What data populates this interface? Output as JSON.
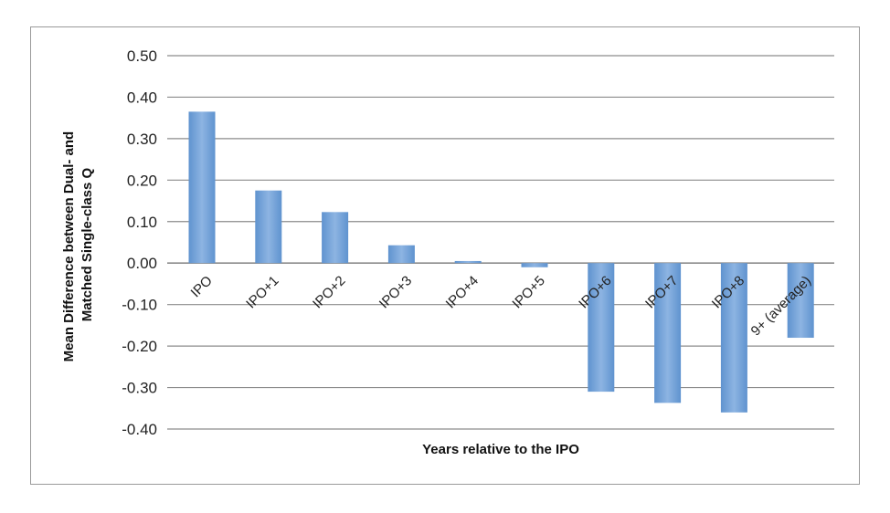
{
  "chart_data": {
    "type": "bar",
    "title": "",
    "xlabel": "Years relative to the IPO",
    "ylabel": "Mean Difference between Dual- and Matched Single-class Q",
    "categories": [
      "IPO",
      "IPO+1",
      "IPO+2",
      "IPO+3",
      "IPO+4",
      "IPO+5",
      "IPO+6",
      "IPO+7",
      "IPO+8",
      "9+ (average)"
    ],
    "series": [
      {
        "values": [
          0.365,
          0.175,
          0.123,
          0.043,
          0.005,
          -0.01,
          -0.31,
          -0.337,
          -0.36,
          -0.18
        ]
      }
    ],
    "ylim": [
      -0.4,
      0.5
    ],
    "yticks": [
      0.5,
      0.4,
      0.3,
      0.2,
      0.1,
      0.0,
      -0.1,
      -0.2,
      -0.3,
      -0.4
    ],
    "ytick_labels": [
      "0.50",
      "0.40",
      "0.30",
      "0.20",
      "0.10",
      "0.00",
      "-0.10",
      "-0.20",
      "-0.30",
      "-0.40"
    ],
    "grid": true,
    "legend": "none",
    "colors": {
      "bar": "#5f93cf",
      "bar_light": "#8db4e2",
      "grid": "#8c8c8c"
    }
  }
}
